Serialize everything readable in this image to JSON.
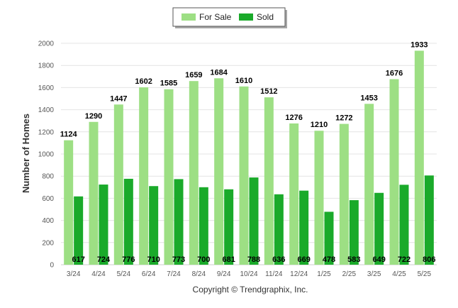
{
  "chart_data": {
    "type": "bar",
    "categories": [
      "3/24",
      "4/24",
      "5/24",
      "6/24",
      "7/24",
      "8/24",
      "9/24",
      "10/24",
      "11/24",
      "12/24",
      "1/25",
      "2/25",
      "3/25",
      "4/25",
      "5/25"
    ],
    "series": [
      {
        "name": "For Sale",
        "color": "#9ddf84",
        "values": [
          1124,
          1290,
          1447,
          1602,
          1585,
          1659,
          1684,
          1610,
          1512,
          1276,
          1210,
          1272,
          1453,
          1676,
          1933
        ]
      },
      {
        "name": "Sold",
        "color": "#1aaa2a",
        "values": [
          617,
          724,
          776,
          710,
          773,
          700,
          681,
          788,
          636,
          669,
          478,
          583,
          649,
          722,
          806
        ]
      }
    ],
    "ylabel": "Number of Homes",
    "xlabel": "",
    "ylim": [
      0,
      2000
    ],
    "yticks": [
      0,
      200,
      400,
      600,
      800,
      1000,
      1200,
      1400,
      1600,
      1800,
      2000
    ],
    "grid": true,
    "legend": "top-center"
  },
  "footer": {
    "copyright": "Copyright © Trendgraphix, Inc."
  }
}
